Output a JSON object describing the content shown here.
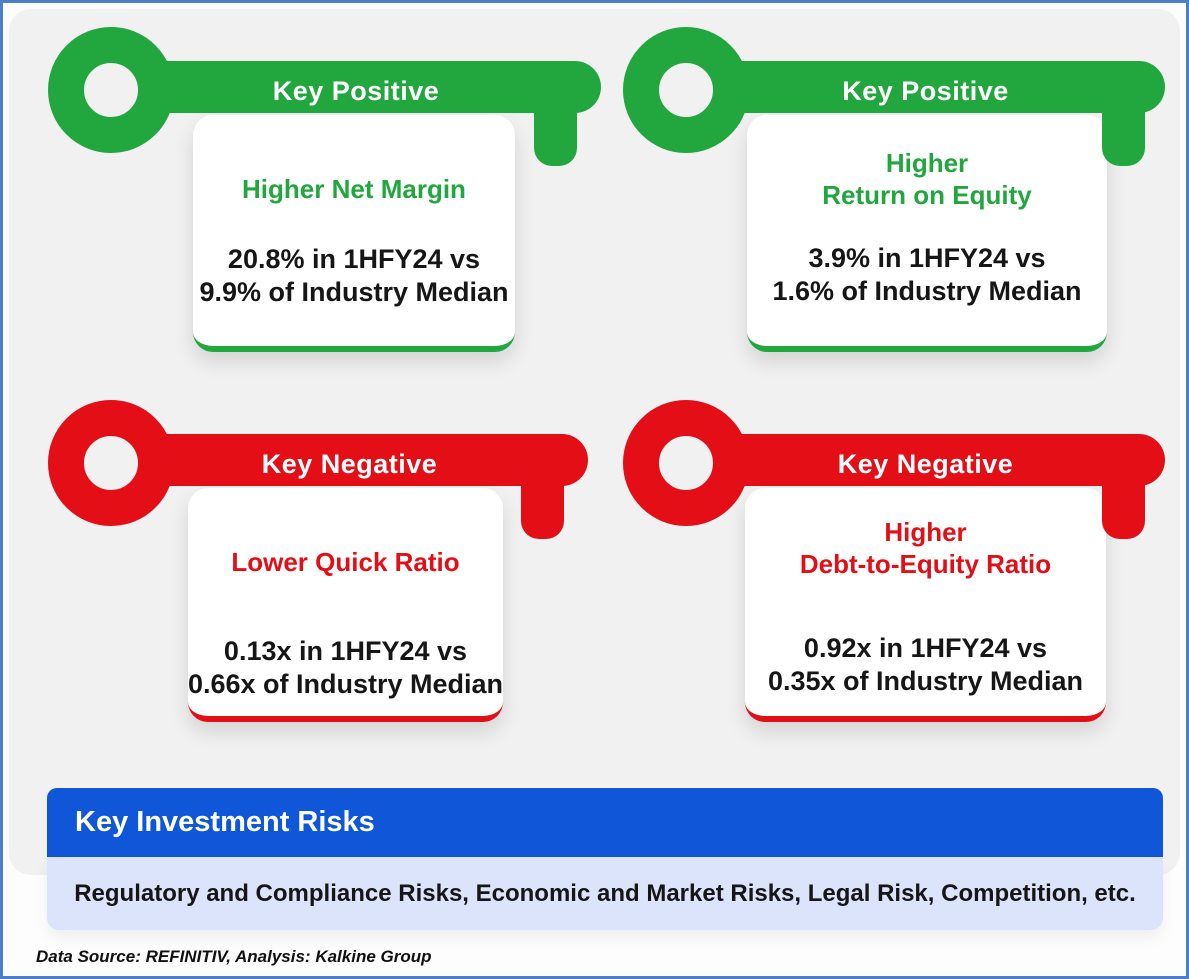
{
  "keys": [
    {
      "label": "Key Positive",
      "sentiment": "positive",
      "title_lines": [
        "Higher Net Margin"
      ],
      "body_lines": [
        "20.8% in 1HFY24 vs",
        "9.9% of Industry Median"
      ]
    },
    {
      "label": "Key Positive",
      "sentiment": "positive",
      "title_lines": [
        "Higher",
        "Return on Equity"
      ],
      "body_lines": [
        "3.9% in 1HFY24 vs",
        "1.6% of Industry Median"
      ]
    },
    {
      "label": "Key Negative",
      "sentiment": "negative",
      "title_lines": [
        "Lower Quick Ratio"
      ],
      "body_lines": [
        "0.13x in 1HFY24 vs",
        "0.66x of Industry Median"
      ]
    },
    {
      "label": "Key Negative",
      "sentiment": "negative",
      "title_lines": [
        "Higher",
        "Debt-to-Equity Ratio"
      ],
      "body_lines": [
        "0.92x in 1HFY24 vs",
        "0.35x of Industry Median"
      ]
    }
  ],
  "risks": {
    "header": "Key Investment Risks",
    "text": "Regulatory and Compliance Risks, Economic and Market Risks, Legal Risk, Competition, etc."
  },
  "source": "Data Source: REFINITIV, Analysis: Kalkine Group",
  "colors": {
    "positive_green": "#21a73d",
    "negative_red": "#e30e16",
    "banner_blue": "#0f56d9",
    "light_blue": "#dbe4fb",
    "frame_blue": "#4d7ec9",
    "panel_gray": "#f1f1f2"
  }
}
